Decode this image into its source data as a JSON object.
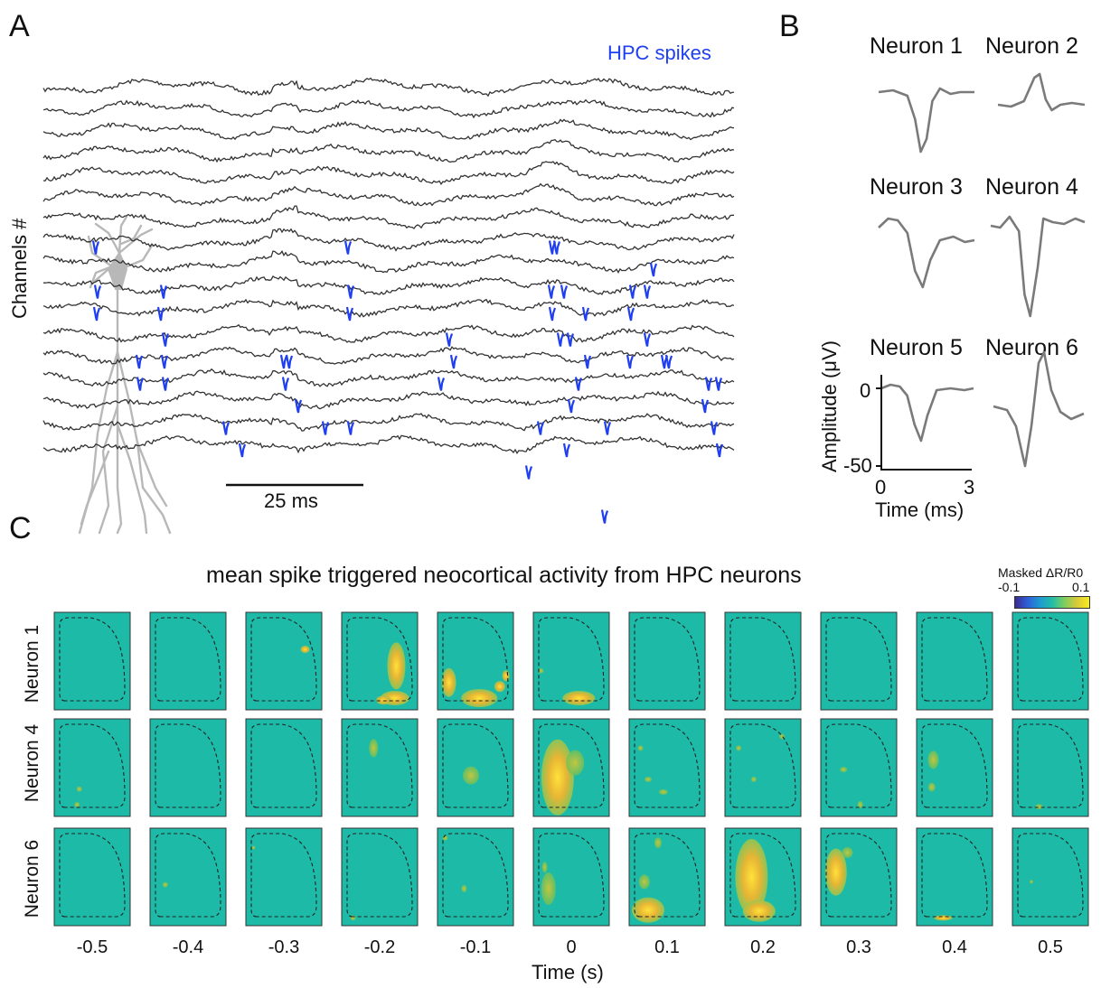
{
  "panels": {
    "a": "A",
    "b": "B",
    "c": "C"
  },
  "panel_a": {
    "legend_label": "HPC spikes",
    "ylabel": "Channels #",
    "scalebar_label": "25 ms",
    "trace_count": 17,
    "colors": {
      "trace": "#333333",
      "spike": "#1f3ff0",
      "neuron_drawing": "#b8b8b8"
    }
  },
  "panel_b": {
    "neurons": [
      "Neuron 1",
      "Neuron 2",
      "Neuron 3",
      "Neuron 4",
      "Neuron 5",
      "Neuron 6"
    ],
    "ylabel": "Amplitude (μV)",
    "xlabel": "Time (ms)",
    "yticks": [
      "0",
      "-50"
    ],
    "xticks": [
      "0",
      "3"
    ],
    "waveform_color": "#7a7a7a"
  },
  "panel_c": {
    "title": "mean spike triggered neocortical activity from HPC neurons",
    "colorbar": {
      "label": "Masked ΔR/R0",
      "min": "-0.1",
      "max": "0.1"
    },
    "rows": [
      "Neuron 1",
      "Neuron 4",
      "Neuron 6"
    ],
    "columns": [
      "-0.5",
      "-0.4",
      "-0.3",
      "-0.2",
      "-0.1",
      "0",
      "0.1",
      "0.2",
      "0.3",
      "0.4",
      "0.5"
    ],
    "xlabel": "Time (s)",
    "background_color": "#1dbaa8"
  }
}
